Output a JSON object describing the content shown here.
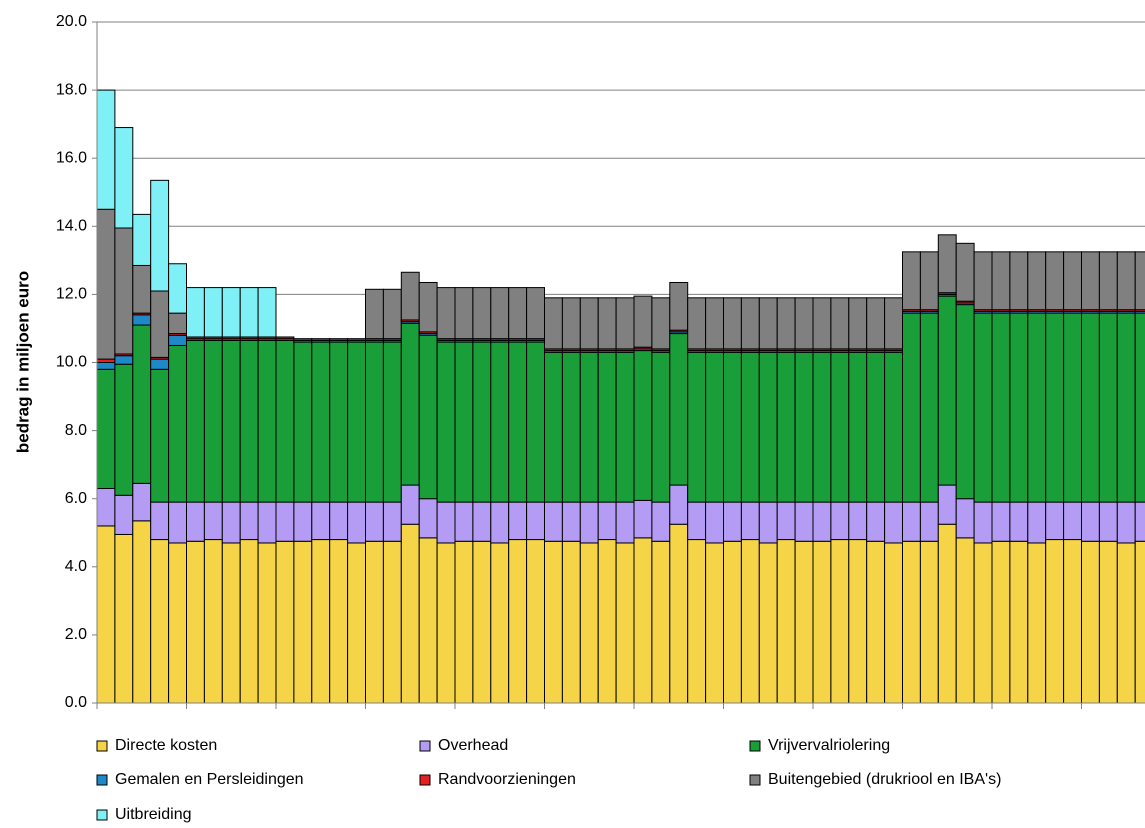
{
  "chart_data": {
    "type": "stacked_bar",
    "y_label": "bedrag in miljoen euro",
    "categories": [
      null,
      null,
      null,
      null,
      null,
      null,
      null,
      null,
      null,
      null,
      null,
      null,
      null,
      null,
      null,
      null,
      null,
      null,
      null,
      null,
      null,
      null,
      null,
      null,
      null,
      null,
      null,
      null,
      null,
      null,
      null,
      null,
      null,
      null,
      null,
      null,
      null,
      null,
      null,
      null,
      null,
      null,
      null,
      null,
      null,
      null,
      null,
      null,
      null,
      null,
      null,
      null,
      null,
      null,
      null,
      null,
      null,
      null,
      null
    ],
    "ylim": [
      0,
      20
    ],
    "yticks": [
      {
        "value": 0,
        "label": "0.0"
      },
      {
        "value": 2,
        "label": "2.0"
      },
      {
        "value": 4,
        "label": "4.0"
      },
      {
        "value": 6,
        "label": "6.0"
      },
      {
        "value": 8,
        "label": "8.0"
      },
      {
        "value": 10,
        "label": "10.0"
      },
      {
        "value": 12,
        "label": "12.0"
      },
      {
        "value": 14,
        "label": "14.0"
      },
      {
        "value": 16,
        "label": "16.0"
      },
      {
        "value": 18,
        "label": "18.0"
      },
      {
        "value": 20,
        "label": "20.0"
      }
    ],
    "grid": true,
    "legend": "bottom",
    "series": [
      {
        "name": "Directe kosten",
        "color": "#f5d547",
        "values": [
          5.2,
          4.95,
          5.35,
          4.8,
          4.7,
          4.75,
          4.8,
          4.7,
          4.8,
          4.7,
          4.75,
          4.75,
          4.8,
          4.8,
          4.7,
          4.75,
          4.75,
          5.25,
          4.85,
          4.7,
          4.75,
          4.75,
          4.7,
          4.8,
          4.8,
          4.75,
          4.75,
          4.7,
          4.8,
          4.7,
          4.85,
          4.75,
          5.25,
          4.8,
          4.7,
          4.75,
          4.8,
          4.7,
          4.8,
          4.75,
          4.75,
          4.8,
          4.8,
          4.75,
          4.7,
          4.75,
          4.75,
          5.25,
          4.85,
          4.7,
          4.75,
          4.75,
          4.7,
          4.8,
          4.8,
          4.75,
          4.75,
          4.7,
          4.75
        ]
      },
      {
        "name": "Overhead",
        "color": "#b49cf5",
        "values": [
          1.1,
          1.15,
          1.1,
          1.1,
          1.2,
          1.15,
          1.1,
          1.2,
          1.1,
          1.2,
          1.15,
          1.15,
          1.1,
          1.1,
          1.2,
          1.15,
          1.15,
          1.15,
          1.15,
          1.2,
          1.15,
          1.15,
          1.2,
          1.1,
          1.1,
          1.15,
          1.15,
          1.2,
          1.1,
          1.2,
          1.1,
          1.15,
          1.15,
          1.1,
          1.2,
          1.15,
          1.1,
          1.2,
          1.1,
          1.15,
          1.15,
          1.1,
          1.1,
          1.15,
          1.2,
          1.15,
          1.15,
          1.15,
          1.15,
          1.2,
          1.15,
          1.15,
          1.2,
          1.1,
          1.1,
          1.15,
          1.15,
          1.2,
          1.15
        ]
      },
      {
        "name": "Vrijvervalriolering",
        "color": "#1a9e3a",
        "values": [
          3.5,
          3.85,
          4.65,
          3.9,
          4.6,
          4.75,
          4.75,
          4.75,
          4.75,
          4.75,
          4.75,
          4.7,
          4.7,
          4.7,
          4.7,
          4.7,
          4.7,
          4.75,
          4.8,
          4.7,
          4.7,
          4.7,
          4.7,
          4.7,
          4.7,
          4.4,
          4.4,
          4.4,
          4.4,
          4.4,
          4.4,
          4.4,
          4.45,
          4.4,
          4.4,
          4.4,
          4.4,
          4.4,
          4.4,
          4.4,
          4.4,
          4.4,
          4.4,
          4.4,
          4.4,
          5.55,
          5.55,
          5.55,
          5.7,
          5.55,
          5.55,
          5.55,
          5.55,
          5.55,
          5.55,
          5.55,
          5.55,
          5.55,
          5.55
        ]
      },
      {
        "name": "Gemalen en Persleidingen",
        "color": "#1e88c8",
        "values": [
          0.2,
          0.25,
          0.3,
          0.3,
          0.3,
          0.05,
          0.05,
          0.05,
          0.05,
          0.05,
          0.05,
          0.05,
          0.05,
          0.05,
          0.05,
          0.05,
          0.05,
          0.05,
          0.05,
          0.05,
          0.05,
          0.05,
          0.05,
          0.05,
          0.05,
          0.05,
          0.05,
          0.05,
          0.05,
          0.05,
          0.05,
          0.05,
          0.05,
          0.05,
          0.05,
          0.05,
          0.05,
          0.05,
          0.05,
          0.05,
          0.05,
          0.05,
          0.05,
          0.05,
          0.05,
          0.05,
          0.05,
          0.05,
          0.05,
          0.05,
          0.05,
          0.05,
          0.05,
          0.05,
          0.05,
          0.05,
          0.05,
          0.05,
          0.05
        ]
      },
      {
        "name": "Randvoorzieningen",
        "color": "#e52020",
        "values": [
          0.1,
          0.05,
          0.05,
          0.05,
          0.05,
          0.05,
          0.05,
          0.05,
          0.05,
          0.05,
          0.05,
          0.05,
          0.05,
          0.05,
          0.05,
          0.05,
          0.05,
          0.05,
          0.05,
          0.05,
          0.05,
          0.05,
          0.05,
          0.05,
          0.05,
          0.05,
          0.05,
          0.05,
          0.05,
          0.05,
          0.05,
          0.05,
          0.05,
          0.05,
          0.05,
          0.05,
          0.05,
          0.05,
          0.05,
          0.05,
          0.05,
          0.05,
          0.05,
          0.05,
          0.05,
          0.05,
          0.05,
          0.05,
          0.05,
          0.05,
          0.05,
          0.05,
          0.05,
          0.05,
          0.05,
          0.05,
          0.05,
          0.05,
          0.05
        ]
      },
      {
        "name": "Buitengebied (drukriool en IBA's)",
        "color": "#808080",
        "values": [
          4.4,
          3.7,
          1.4,
          1.95,
          0.6,
          0,
          0,
          0,
          0,
          0,
          0,
          0,
          0,
          0,
          0,
          1.45,
          1.45,
          1.4,
          1.45,
          1.5,
          1.5,
          1.5,
          1.5,
          1.5,
          1.5,
          1.5,
          1.5,
          1.5,
          1.5,
          1.5,
          1.5,
          1.5,
          1.4,
          1.5,
          1.5,
          1.5,
          1.5,
          1.5,
          1.5,
          1.5,
          1.5,
          1.5,
          1.5,
          1.5,
          1.5,
          1.7,
          1.7,
          1.7,
          1.7,
          1.7,
          1.7,
          1.7,
          1.7,
          1.7,
          1.7,
          1.7,
          1.7,
          1.7,
          1.7
        ]
      },
      {
        "name": "Uitbreiding",
        "color": "#7ff0f5",
        "values": [
          3.5,
          2.95,
          1.5,
          3.25,
          1.45,
          1.45,
          1.45,
          1.45,
          1.45,
          1.45,
          0,
          0,
          0,
          0,
          0,
          0,
          0,
          0,
          0,
          0,
          0,
          0,
          0,
          0,
          0,
          0,
          0,
          0,
          0,
          0,
          0,
          0,
          0,
          0,
          0,
          0,
          0,
          0,
          0,
          0,
          0,
          0,
          0,
          0,
          0,
          0,
          0,
          0,
          0,
          0,
          0,
          0,
          0,
          0,
          0,
          0,
          0,
          0,
          0
        ]
      }
    ]
  }
}
